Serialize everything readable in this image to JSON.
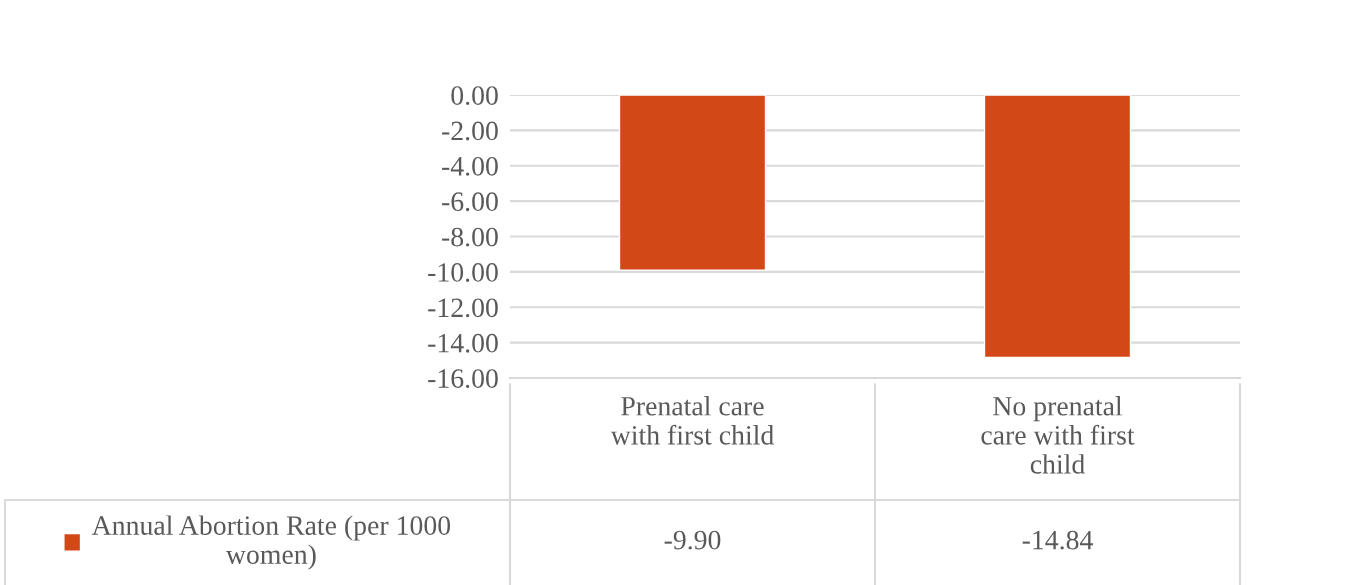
{
  "chart_data": {
    "type": "bar",
    "categories": [
      "Prenatal care\nwith first child",
      "No prenatal\ncare with first\nchild"
    ],
    "series": [
      {
        "name": "Annual Abortion Rate (per 1000\nwomen)",
        "color": "#d34817",
        "values": [
          -9.9,
          -14.84
        ],
        "value_labels": [
          "-9.90",
          "-14.84"
        ]
      }
    ],
    "ylim": [
      -16,
      0
    ],
    "yticks": [
      {
        "value": 0,
        "label": "0.00"
      },
      {
        "value": -2,
        "label": "-2.00"
      },
      {
        "value": -4,
        "label": "-4.00"
      },
      {
        "value": -6,
        "label": "-6.00"
      },
      {
        "value": -8,
        "label": "-8.00"
      },
      {
        "value": -10,
        "label": "-10.00"
      },
      {
        "value": -12,
        "label": "-12.00"
      },
      {
        "value": -14,
        "label": "-14.00"
      },
      {
        "value": -16,
        "label": "-16.00"
      }
    ],
    "grid": "y",
    "legend": "bottom left"
  }
}
